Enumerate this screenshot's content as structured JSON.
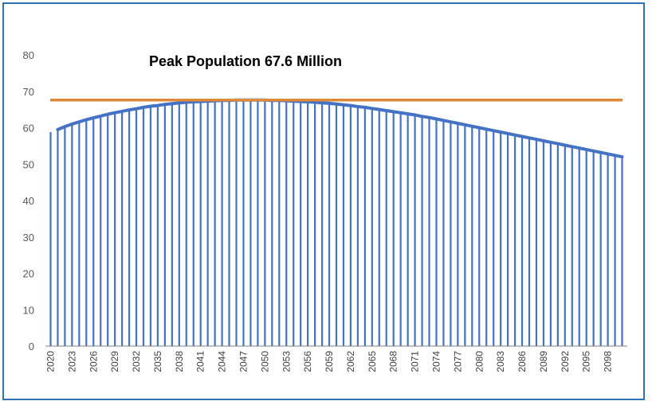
{
  "chart_data": {
    "type": "bar",
    "annotation": "Peak Population 67.6 Million",
    "title": "",
    "xlabel": "",
    "ylabel": "",
    "ylim": [
      0,
      80
    ],
    "yticks": [
      0,
      10,
      20,
      30,
      40,
      50,
      60,
      70,
      80
    ],
    "grid": false,
    "legend": "none",
    "x_tick_labels": [
      "2020",
      "2023",
      "2026",
      "2029",
      "2032",
      "2035",
      "2038",
      "2041",
      "2044",
      "2047",
      "2050",
      "2053",
      "2056",
      "2059",
      "2062",
      "2065",
      "2068",
      "2071",
      "2074",
      "2077",
      "2080",
      "2083",
      "2086",
      "2089",
      "2092",
      "2095",
      "2098"
    ],
    "categories": [
      2020,
      2021,
      2022,
      2023,
      2024,
      2025,
      2026,
      2027,
      2028,
      2029,
      2030,
      2031,
      2032,
      2033,
      2034,
      2035,
      2036,
      2037,
      2038,
      2039,
      2040,
      2041,
      2042,
      2043,
      2044,
      2045,
      2046,
      2047,
      2048,
      2049,
      2050,
      2051,
      2052,
      2053,
      2054,
      2055,
      2056,
      2057,
      2058,
      2059,
      2060,
      2061,
      2062,
      2063,
      2064,
      2065,
      2066,
      2067,
      2068,
      2069,
      2070,
      2071,
      2072,
      2073,
      2074,
      2075,
      2076,
      2077,
      2078,
      2079,
      2080,
      2081,
      2082,
      2083,
      2084,
      2085,
      2086,
      2087,
      2088,
      2089,
      2090,
      2091,
      2092,
      2093,
      2094,
      2095,
      2096,
      2097,
      2098,
      2099,
      2100
    ],
    "values": [
      58.8,
      59.5,
      60.3,
      61.0,
      61.6,
      62.2,
      62.7,
      63.2,
      63.7,
      64.1,
      64.5,
      64.9,
      65.2,
      65.6,
      65.9,
      66.1,
      66.4,
      66.6,
      66.8,
      67.0,
      67.1,
      67.2,
      67.3,
      67.4,
      67.5,
      67.5,
      67.6,
      67.6,
      67.6,
      67.6,
      67.6,
      67.5,
      67.5,
      67.4,
      67.3,
      67.2,
      67.1,
      67.0,
      66.8,
      66.7,
      66.5,
      66.3,
      66.1,
      65.8,
      65.6,
      65.3,
      65.0,
      64.7,
      64.4,
      64.1,
      63.8,
      63.5,
      63.1,
      62.8,
      62.4,
      62.0,
      61.6,
      61.2,
      60.8,
      60.4,
      60.0,
      59.6,
      59.2,
      58.8,
      58.4,
      58.0,
      57.6,
      57.2,
      56.8,
      56.4,
      56.0,
      55.6,
      55.2,
      54.8,
      54.4,
      54.0,
      53.6,
      53.2,
      52.8,
      52.4,
      52.0
    ],
    "bar_color": "#4472c4",
    "curve_color": "#4472c4",
    "reference_line": {
      "value": 67.6,
      "color": "#e08a3c"
    }
  }
}
